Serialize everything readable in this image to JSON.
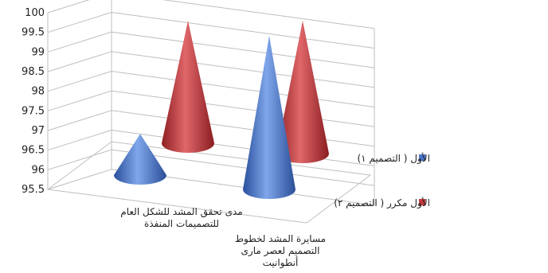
{
  "chart_data": {
    "type": "bar",
    "style": "3d-cone",
    "categories": [
      [
        "مدى تحقق المشد للشكل العام",
        "للتصميمات المنفذة"
      ],
      [
        "مسايرة المشد لخطوط",
        "التصميم لعصر مارى",
        "أنطوانيت"
      ]
    ],
    "series": [
      {
        "name": "الأول ( التصميم ١)",
        "color": "#4a74c9",
        "values": [
          96.7,
          99.6
        ]
      },
      {
        "name": "الأول مكرر ( التصميم ٢)",
        "color": "#c1373a",
        "values": [
          100.0,
          100.0
        ]
      }
    ],
    "ylim": [
      95.5,
      100
    ],
    "yticks": [
      "100",
      "99.5",
      "99",
      "98.5",
      "98",
      "97.5",
      "97",
      "96.5",
      "96",
      "95.5"
    ],
    "grid": true,
    "legend_position": "right"
  }
}
